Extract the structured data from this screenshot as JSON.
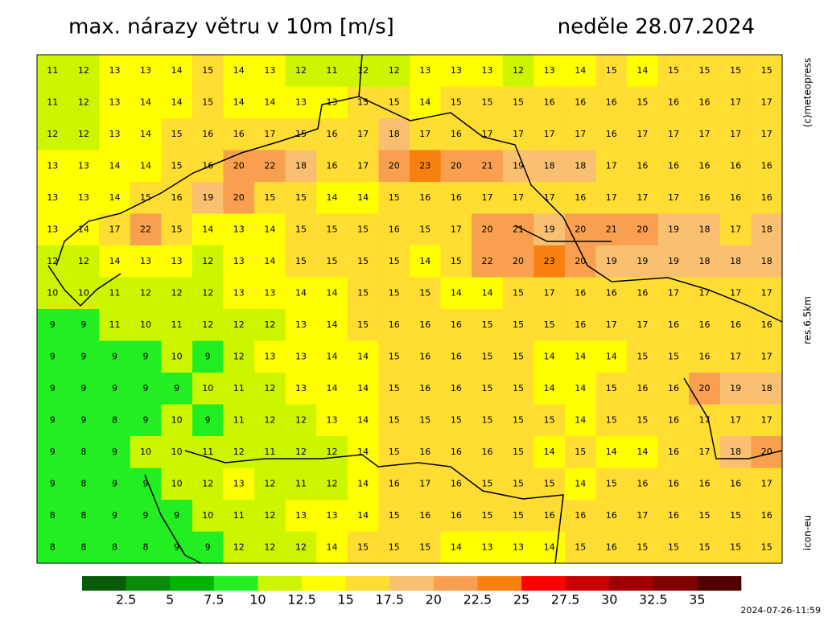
{
  "header": {
    "title": "max. nárazy větru v 10m [m/s]",
    "date": "neděle 28.07.2024"
  },
  "map": {
    "rows": [
      [
        11,
        12,
        13,
        13,
        14,
        15,
        14,
        13,
        12,
        11,
        12,
        12,
        13,
        13,
        13,
        12,
        13,
        14,
        15,
        14,
        15,
        15,
        15,
        15
      ],
      [
        11,
        12,
        13,
        14,
        14,
        15,
        14,
        14,
        13,
        13,
        15,
        15,
        14,
        15,
        15,
        15,
        16,
        16,
        16,
        15,
        16,
        16,
        17,
        17
      ],
      [
        12,
        12,
        13,
        14,
        15,
        16,
        16,
        17,
        15,
        16,
        17,
        18,
        17,
        16,
        17,
        17,
        17,
        17,
        16,
        17,
        17,
        17,
        17,
        17
      ],
      [
        13,
        13,
        14,
        14,
        15,
        16,
        20,
        22,
        18,
        16,
        17,
        20,
        23,
        20,
        21,
        19,
        18,
        18,
        17,
        16,
        16,
        16,
        16,
        16
      ],
      [
        13,
        13,
        14,
        15,
        16,
        19,
        20,
        15,
        15,
        14,
        14,
        15,
        16,
        16,
        17,
        17,
        17,
        16,
        17,
        17,
        17,
        16,
        16,
        16
      ],
      [
        13,
        14,
        17,
        22,
        15,
        14,
        13,
        14,
        15,
        15,
        15,
        16,
        15,
        17,
        20,
        21,
        19,
        20,
        21,
        20,
        19,
        18,
        17,
        18
      ],
      [
        12,
        12,
        14,
        13,
        13,
        12,
        13,
        14,
        15,
        15,
        15,
        15,
        14,
        15,
        22,
        20,
        23,
        20,
        19,
        19,
        19,
        18,
        18,
        18
      ],
      [
        10,
        10,
        11,
        12,
        12,
        12,
        13,
        13,
        14,
        14,
        15,
        15,
        15,
        14,
        14,
        15,
        17,
        16,
        16,
        16,
        17,
        17,
        17,
        17
      ],
      [
        9,
        9,
        11,
        10,
        11,
        12,
        12,
        12,
        13,
        14,
        15,
        16,
        16,
        16,
        15,
        15,
        15,
        16,
        17,
        17,
        16,
        16,
        16,
        16
      ],
      [
        9,
        9,
        9,
        9,
        10,
        9,
        12,
        13,
        13,
        14,
        14,
        15,
        16,
        16,
        15,
        15,
        14,
        14,
        14,
        15,
        15,
        16,
        17,
        17
      ],
      [
        9,
        9,
        9,
        9,
        9,
        10,
        11,
        12,
        13,
        14,
        14,
        15,
        16,
        16,
        15,
        15,
        14,
        14,
        15,
        16,
        16,
        20,
        19,
        18
      ],
      [
        9,
        9,
        8,
        9,
        10,
        9,
        11,
        12,
        12,
        13,
        14,
        15,
        15,
        15,
        15,
        15,
        15,
        14,
        15,
        15,
        16,
        17,
        17,
        17
      ],
      [
        9,
        8,
        9,
        10,
        10,
        11,
        12,
        11,
        12,
        12,
        14,
        15,
        16,
        16,
        16,
        15,
        14,
        15,
        14,
        14,
        16,
        17,
        18,
        20
      ],
      [
        9,
        8,
        9,
        9,
        10,
        12,
        13,
        12,
        11,
        12,
        14,
        16,
        17,
        16,
        15,
        15,
        15,
        14,
        15,
        16,
        16,
        16,
        16,
        17
      ],
      [
        8,
        8,
        9,
        9,
        9,
        10,
        11,
        12,
        13,
        13,
        14,
        15,
        16,
        16,
        15,
        15,
        16,
        16,
        16,
        17,
        16,
        15,
        15,
        16
      ],
      [
        8,
        8,
        8,
        8,
        9,
        9,
        12,
        12,
        12,
        14,
        15,
        15,
        15,
        14,
        13,
        13,
        14,
        15,
        16,
        15,
        15,
        15,
        15,
        15
      ]
    ]
  },
  "legend": {
    "colors": [
      "#0a5a0a",
      "#0a8a0a",
      "#00b400",
      "#22ee22",
      "#ccf500",
      "#ffff00",
      "#ffdd33",
      "#f8c070",
      "#f8a050",
      "#f88010",
      "#ff0000",
      "#c80000",
      "#a00000",
      "#800000",
      "#500000"
    ],
    "labels": [
      2.5,
      5,
      7.5,
      10,
      12.5,
      15,
      17.5,
      20,
      22.5,
      25,
      27.5,
      30,
      32.5,
      35
    ]
  },
  "credits": {
    "source": "(c)meteopress",
    "resolution": "res.6.5km",
    "model": "icon-eu",
    "timestamp": "2024-07-26-11:59"
  }
}
